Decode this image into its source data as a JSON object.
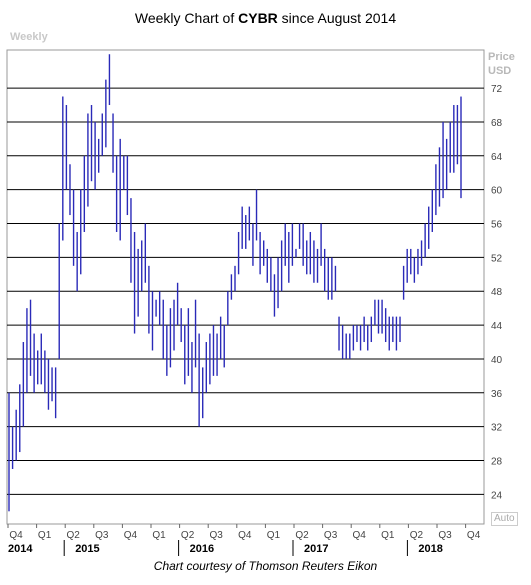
{
  "title": {
    "prefix": "Weekly Chart of ",
    "ticker": "CYBR",
    "suffix": " since August 2014"
  },
  "weekly_label": "Weekly",
  "price_label": [
    "Price",
    "USD"
  ],
  "auto_label": "Auto",
  "footer": "Chart courtesy of Thomson Reuters Eikon",
  "colors": {
    "bars": "#2a2ab8",
    "grid": "#000000",
    "axis_text": "#444444"
  },
  "chart_data": {
    "type": "bar",
    "subtype": "weekly high-low bars",
    "title": "Weekly Chart of CYBR since August 2014",
    "ylabel": "Price USD",
    "ylim": [
      20.5,
      76.5
    ],
    "y_ticks": [
      24,
      28,
      32,
      36,
      40,
      44,
      48,
      52,
      56,
      60,
      64,
      68,
      72
    ],
    "grid": true,
    "quarter_labels": [
      "Q4",
      "Q1",
      "Q2",
      "Q3",
      "Q4",
      "Q1",
      "Q2",
      "Q3",
      "Q4",
      "Q1",
      "Q2",
      "Q3",
      "Q4",
      "Q1",
      "Q2",
      "Q3",
      "Q4"
    ],
    "year_labels": [
      "2014",
      "2015",
      "2016",
      "2017",
      "2018"
    ],
    "year_label_quarter_index": [
      0,
      2,
      6,
      10,
      14
    ],
    "series": [
      {
        "values_low": [
          22,
          27,
          28,
          29,
          32,
          36,
          38,
          36,
          37,
          37,
          36,
          34,
          35,
          33,
          40,
          54,
          60,
          57,
          51,
          48,
          50,
          55,
          58,
          61,
          60,
          62,
          64,
          65,
          70,
          62,
          55,
          54,
          60,
          57,
          49,
          43,
          45,
          48,
          49,
          43,
          41,
          45,
          44,
          40,
          38,
          39,
          41,
          44,
          42,
          37,
          38,
          36,
          39,
          32,
          33,
          36,
          37,
          38,
          38,
          40,
          39,
          44,
          47,
          48,
          50,
          53,
          53,
          54,
          51,
          54,
          50,
          51,
          49,
          48,
          45,
          46,
          48,
          51,
          49,
          51,
          52,
          53,
          51,
          50,
          50,
          49,
          49,
          51,
          48,
          47,
          47,
          48,
          41,
          40,
          40,
          40,
          41,
          42,
          41,
          42,
          41,
          42,
          44,
          43,
          43,
          42,
          41,
          42,
          41,
          42,
          47,
          49,
          50,
          49,
          50,
          51,
          52,
          53,
          55,
          57,
          58,
          59,
          60,
          62,
          62,
          63,
          59
        ],
        "values_high": [
          36,
          32,
          34,
          37,
          42,
          46,
          47,
          43,
          41,
          43,
          41,
          40,
          39,
          39,
          56,
          71,
          70,
          63,
          60,
          55,
          60,
          64,
          69,
          70,
          68,
          66,
          69,
          73,
          76,
          69,
          64,
          66,
          64,
          64,
          59,
          55,
          53,
          54,
          56,
          51,
          48,
          47,
          48,
          47,
          44,
          46,
          47,
          49,
          46,
          44,
          46,
          42,
          47,
          43,
          39,
          42,
          43,
          44,
          43,
          45,
          44,
          48,
          50,
          51,
          55,
          58,
          57,
          58,
          56,
          60,
          55,
          54,
          53,
          52,
          50,
          52,
          54,
          56,
          55,
          56,
          53,
          56,
          56,
          54,
          55,
          54,
          53,
          56,
          53,
          52,
          52,
          51,
          45,
          44,
          43,
          43,
          44,
          44,
          44,
          45,
          44,
          45,
          47,
          47,
          47,
          46,
          45,
          45,
          45,
          45,
          51,
          53,
          53,
          52,
          53,
          54,
          56,
          58,
          60,
          63,
          65,
          68,
          66,
          68,
          70,
          70,
          71
        ]
      }
    ]
  }
}
